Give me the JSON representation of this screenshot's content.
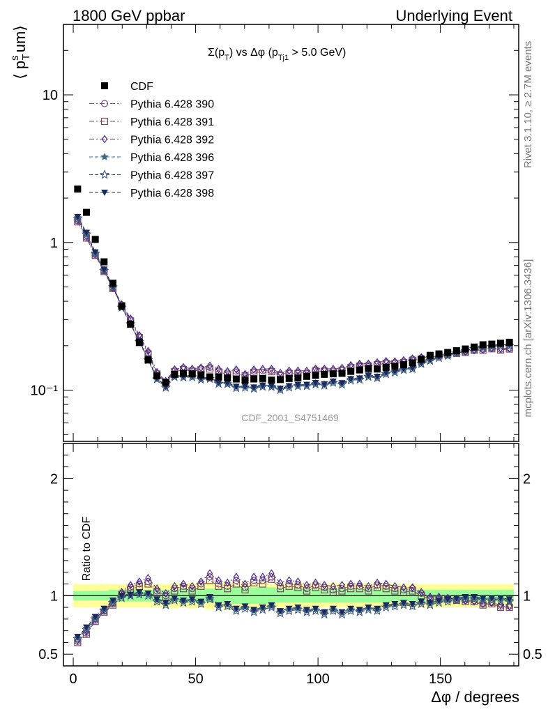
{
  "header": {
    "left": "1800 GeV ppbar",
    "right": "Underlying Event",
    "side_top": "Rivet 3.1.10, ≥ 2.7M events",
    "side_bottom": "mcplots.cern.ch [arXiv:1306.3436]"
  },
  "chart_data": {
    "type": "scatter",
    "title": "Σ(p_T) vs Δφ (p_Tj1 > 5.0 GeV)",
    "ylabel": "⟨ p_T^sum ⟩",
    "xlabel": "Δφ / degrees",
    "ratio_ylabel": "Ratio to CDF",
    "watermark": "CDF_2001_S4751469",
    "x_range": [
      -4,
      182
    ],
    "y_range": [
      0.045,
      30
    ],
    "y_scale": "log",
    "ratio_range": [
      0.4,
      2.3
    ],
    "x_ticks": [
      0,
      50,
      100,
      150
    ],
    "y_tick_labels": [
      "10⁻¹",
      "1",
      "10"
    ],
    "ratio_tick_labels": [
      "0.5",
      "1",
      "2"
    ],
    "legend_position": "top-left",
    "x": [
      1.8,
      5.4,
      9,
      12.6,
      16.2,
      19.8,
      23.4,
      27,
      30.6,
      34.2,
      37.8,
      41.4,
      45,
      48.6,
      52.2,
      55.8,
      59.4,
      63,
      66.6,
      70.2,
      73.8,
      77.4,
      81,
      84.6,
      88.2,
      91.8,
      95.4,
      99,
      102.6,
      106.2,
      109.8,
      113.4,
      117,
      120.6,
      124.2,
      127.8,
      131.4,
      135,
      138.6,
      142.2,
      145.8,
      149.4,
      153,
      156.6,
      160.2,
      163.8,
      167.4,
      171,
      174.6,
      178.2
    ],
    "data": {
      "name": "CDF",
      "values": [
        2.3,
        1.6,
        1.05,
        0.74,
        0.53,
        0.37,
        0.28,
        0.21,
        0.16,
        0.125,
        0.113,
        0.128,
        0.13,
        0.129,
        0.127,
        0.123,
        0.123,
        0.121,
        0.119,
        0.117,
        0.119,
        0.12,
        0.117,
        0.118,
        0.12,
        0.121,
        0.124,
        0.126,
        0.128,
        0.129,
        0.13,
        0.134,
        0.137,
        0.14,
        0.139,
        0.143,
        0.145,
        0.149,
        0.153,
        0.162,
        0.172,
        0.176,
        0.18,
        0.185,
        0.19,
        0.196,
        0.203,
        0.205,
        0.208,
        0.211
      ],
      "band_inner": [
        0.04,
        0.04,
        0.04,
        0.04,
        0.05,
        0.05,
        0.05,
        0.05,
        0.05,
        0.05,
        0.05,
        0.05,
        0.06,
        0.06,
        0.06,
        0.06,
        0.06,
        0.06,
        0.07,
        0.07,
        0.07,
        0.07,
        0.07,
        0.06,
        0.06,
        0.06,
        0.06,
        0.06,
        0.06,
        0.06,
        0.06,
        0.06,
        0.06,
        0.06,
        0.06,
        0.06,
        0.05,
        0.05,
        0.05,
        0.05,
        0.05,
        0.05,
        0.05,
        0.05,
        0.05,
        0.05,
        0.05,
        0.05,
        0.05,
        0.05
      ],
      "band_outer": [
        0.1,
        0.1,
        0.1,
        0.1,
        0.1,
        0.1,
        0.1,
        0.1,
        0.1,
        0.1,
        0.1,
        0.11,
        0.1,
        0.11,
        0.1,
        0.12,
        0.1,
        0.12,
        0.1,
        0.12,
        0.1,
        0.12,
        0.1,
        0.11,
        0.1,
        0.11,
        0.1,
        0.11,
        0.1,
        0.11,
        0.1,
        0.11,
        0.1,
        0.11,
        0.1,
        0.11,
        0.1,
        0.1,
        0.1,
        0.1,
        0.1,
        0.1,
        0.1,
        0.1,
        0.1,
        0.1,
        0.1,
        0.1,
        0.1,
        0.1
      ]
    },
    "series": [
      {
        "name": "Pythia 6.428 390",
        "color": "#7a4a8c",
        "marker": "circle-open",
        "line": "dashdot",
        "ratio": [
          0.61,
          0.68,
          0.79,
          0.87,
          0.93,
          1.02,
          1.07,
          1.1,
          1.12,
          1.04,
          1.0,
          1.06,
          1.08,
          1.06,
          1.1,
          1.16,
          1.1,
          1.08,
          1.13,
          1.07,
          1.13,
          1.13,
          1.16,
          1.08,
          1.1,
          1.09,
          1.06,
          1.09,
          1.07,
          1.05,
          1.06,
          1.08,
          1.08,
          1.06,
          1.09,
          1.08,
          1.06,
          1.05,
          1.06,
          1.02,
          0.98,
          0.98,
          0.98,
          0.97,
          0.96,
          0.96,
          0.93,
          0.94,
          0.91,
          0.91
        ]
      },
      {
        "name": "Pythia 6.428 391",
        "color": "#7a4a5e",
        "marker": "square-open",
        "line": "dashdot",
        "ratio": [
          0.6,
          0.67,
          0.78,
          0.86,
          0.92,
          1.01,
          1.05,
          1.08,
          1.1,
          1.03,
          0.99,
          1.04,
          1.06,
          1.04,
          1.08,
          1.13,
          1.08,
          1.06,
          1.1,
          1.05,
          1.11,
          1.1,
          1.14,
          1.06,
          1.08,
          1.07,
          1.04,
          1.07,
          1.05,
          1.03,
          1.04,
          1.06,
          1.06,
          1.04,
          1.07,
          1.06,
          1.04,
          1.03,
          1.04,
          1.0,
          0.97,
          0.97,
          0.97,
          0.96,
          0.95,
          0.95,
          0.92,
          0.93,
          0.9,
          0.9
        ]
      },
      {
        "name": "Pythia 6.428 392",
        "color": "#4b2a8c",
        "marker": "diamond-open",
        "line": "dashdot",
        "ratio": [
          0.62,
          0.69,
          0.8,
          0.88,
          0.94,
          1.03,
          1.09,
          1.12,
          1.15,
          1.06,
          1.02,
          1.08,
          1.1,
          1.08,
          1.12,
          1.19,
          1.13,
          1.11,
          1.16,
          1.1,
          1.16,
          1.16,
          1.19,
          1.11,
          1.13,
          1.12,
          1.09,
          1.11,
          1.09,
          1.08,
          1.09,
          1.1,
          1.1,
          1.08,
          1.11,
          1.1,
          1.08,
          1.07,
          1.07,
          1.03,
          0.99,
          0.99,
          0.98,
          0.97,
          0.96,
          0.95,
          0.93,
          0.94,
          0.92,
          0.91
        ]
      },
      {
        "name": "Pythia 6.428 396",
        "color": "#3e6a80",
        "marker": "star-solid",
        "line": "dashed",
        "ratio": [
          0.64,
          0.72,
          0.81,
          0.88,
          0.95,
          0.99,
          1.0,
          1.02,
          1.01,
          0.96,
          0.93,
          0.97,
          0.95,
          0.96,
          0.94,
          0.98,
          0.91,
          0.92,
          0.88,
          0.9,
          0.87,
          0.89,
          0.91,
          0.86,
          0.88,
          0.89,
          0.87,
          0.88,
          0.85,
          0.88,
          0.85,
          0.88,
          0.87,
          0.89,
          0.88,
          0.91,
          0.92,
          0.93,
          0.92,
          0.94,
          0.93,
          0.95,
          0.96,
          0.97,
          0.98,
          0.98,
          0.97,
          0.97,
          0.97,
          0.96
        ]
      },
      {
        "name": "Pythia 6.428 397",
        "color": "#3e5a80",
        "marker": "star-open",
        "line": "dashed",
        "ratio": [
          0.63,
          0.71,
          0.8,
          0.87,
          0.94,
          0.98,
          1.0,
          1.01,
          1.0,
          0.95,
          0.92,
          0.96,
          0.94,
          0.95,
          0.93,
          0.97,
          0.9,
          0.91,
          0.87,
          0.89,
          0.86,
          0.88,
          0.9,
          0.85,
          0.87,
          0.88,
          0.86,
          0.87,
          0.84,
          0.87,
          0.84,
          0.87,
          0.86,
          0.88,
          0.87,
          0.9,
          0.91,
          0.92,
          0.91,
          0.93,
          0.92,
          0.94,
          0.95,
          0.96,
          0.97,
          0.97,
          0.96,
          0.96,
          0.96,
          0.95
        ]
      },
      {
        "name": "Pythia 6.428 398",
        "color": "#1a2a5c",
        "marker": "triangle-down",
        "line": "dashed",
        "ratio": [
          0.65,
          0.73,
          0.82,
          0.89,
          0.96,
          1.0,
          1.01,
          1.03,
          1.02,
          0.97,
          0.94,
          0.98,
          0.96,
          0.97,
          0.95,
          0.99,
          0.92,
          0.93,
          0.89,
          0.91,
          0.88,
          0.9,
          0.92,
          0.87,
          0.89,
          0.9,
          0.88,
          0.89,
          0.86,
          0.89,
          0.86,
          0.89,
          0.88,
          0.9,
          0.89,
          0.92,
          0.93,
          0.94,
          0.93,
          0.95,
          0.94,
          0.96,
          0.97,
          0.98,
          0.99,
          0.99,
          0.98,
          0.98,
          0.98,
          0.97
        ]
      }
    ]
  }
}
